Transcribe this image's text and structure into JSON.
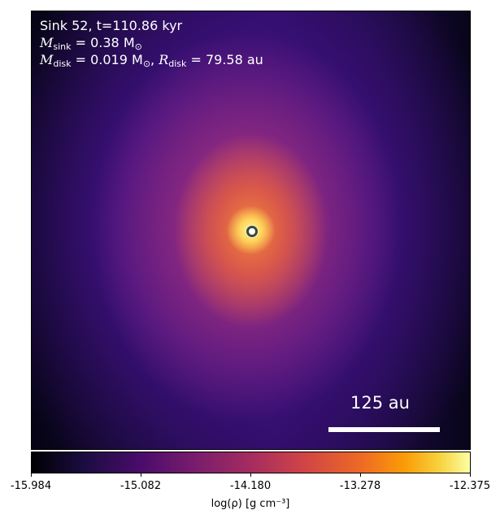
{
  "annotation": {
    "line1": "Sink 52, t=110.86 kyr",
    "m_sink_symbol": "M",
    "m_sink_sub": "sink",
    "m_sink_value": " = 0.38 M",
    "m_sun_sub": "⊙",
    "m_disk_symbol": "M",
    "m_disk_sub": "disk",
    "m_disk_value": " = 0.019 M",
    "m_disk_sun_sub": "⊙",
    "r_disk_symbol": "R",
    "r_disk_sub": "disk",
    "r_disk_value": " = 79.58 au"
  },
  "scalebar": {
    "label": "125 au"
  },
  "colorbar": {
    "ticks": [
      "-15.984",
      "-15.082",
      "-14.180",
      "-13.278",
      "-12.375"
    ],
    "label": "log(ρ) [g cm⁻³]",
    "colormap": "inferno"
  },
  "colors": {
    "annotation_text": "#ffffff",
    "scalebar": "#ffffff",
    "marker_ring": "#3a4a3a"
  }
}
